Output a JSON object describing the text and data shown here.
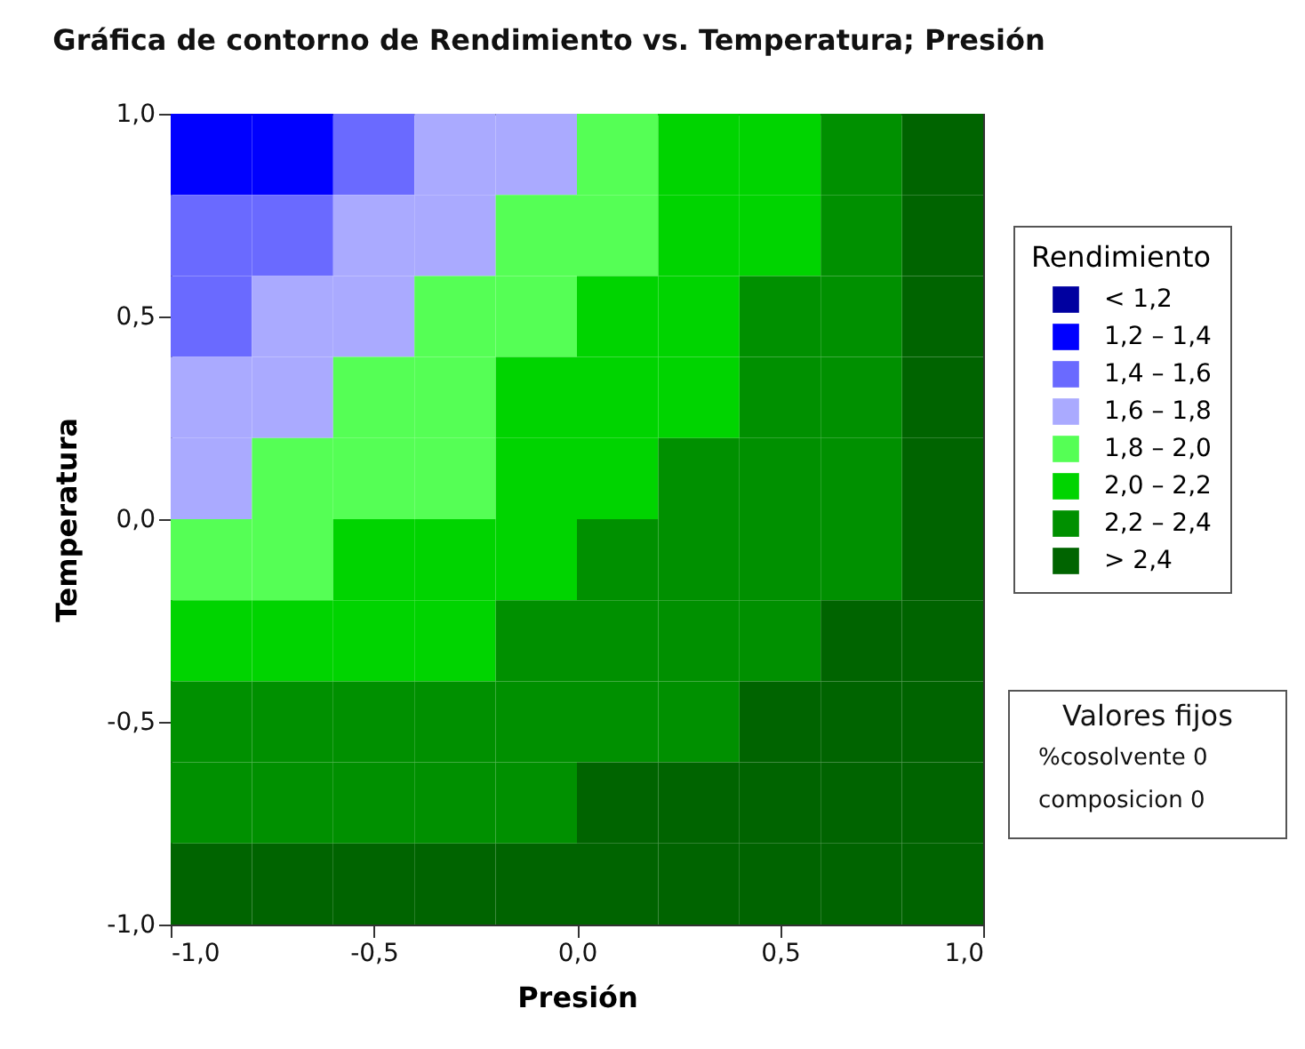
{
  "chart_data": {
    "type": "heatmap",
    "title": "Gráfica de contorno de Rendimiento vs. Temperatura; Presión",
    "xlabel": "Presión",
    "ylabel": "Temperatura",
    "legend_title": "Rendimiento",
    "x": [
      -0.9,
      -0.7,
      -0.5,
      -0.3,
      -0.1,
      0.1,
      0.3,
      0.5,
      0.7,
      0.9
    ],
    "y": [
      0.9,
      0.7,
      0.5,
      0.3,
      0.1,
      -0.1,
      -0.3,
      -0.5,
      -0.7,
      -0.9
    ],
    "xlim": [
      -1,
      1
    ],
    "ylim": [
      -1,
      1
    ],
    "xticks": [
      {
        "value": -1,
        "label": "-1,0"
      },
      {
        "value": -0.5,
        "label": "-0,5"
      },
      {
        "value": 0,
        "label": "0,0"
      },
      {
        "value": 0.5,
        "label": "0,5"
      },
      {
        "value": 1,
        "label": "1,0"
      }
    ],
    "yticks": [
      {
        "value": -1,
        "label": "-1,0"
      },
      {
        "value": -0.5,
        "label": "-0,5"
      },
      {
        "value": 0,
        "label": "0,0"
      },
      {
        "value": 0.5,
        "label": "0,5"
      },
      {
        "value": 1,
        "label": "1,0"
      }
    ],
    "cticks": [
      {
        "value": 1.1,
        "label": "< 1,2"
      },
      {
        "value": 1.3,
        "label": "1,2 – 1,4"
      },
      {
        "value": 1.5,
        "label": "1,4 – 1,6"
      },
      {
        "value": 1.7,
        "label": "1,6 – 1,8"
      },
      {
        "value": 1.9,
        "label": "1,8 – 2,0"
      },
      {
        "value": 2.1,
        "label": "2,0 – 2,2"
      },
      {
        "value": 2.3,
        "label": "2,2 – 2,4"
      },
      {
        "value": 2.5,
        "label": "> 2,4"
      }
    ],
    "colors": [
      "#0000a0",
      "#0000ff",
      "#6a6aff",
      "#aaaaff",
      "#55ff55",
      "#00d400",
      "#009000",
      "#006400"
    ],
    "cells": [
      [
        1.3,
        1.3,
        1.5,
        1.7,
        1.7,
        1.9,
        2.1,
        2.1,
        2.3,
        2.5
      ],
      [
        1.5,
        1.5,
        1.7,
        1.7,
        1.9,
        1.9,
        2.1,
        2.1,
        2.3,
        2.5
      ],
      [
        1.5,
        1.7,
        1.7,
        1.9,
        1.9,
        2.1,
        2.1,
        2.3,
        2.3,
        2.5
      ],
      [
        1.7,
        1.7,
        1.9,
        1.9,
        2.1,
        2.1,
        2.1,
        2.3,
        2.3,
        2.5
      ],
      [
        1.7,
        1.9,
        1.9,
        1.9,
        2.1,
        2.1,
        2.3,
        2.3,
        2.3,
        2.5
      ],
      [
        1.9,
        1.9,
        2.1,
        2.1,
        2.1,
        2.3,
        2.3,
        2.3,
        2.3,
        2.5
      ],
      [
        2.1,
        2.1,
        2.1,
        2.1,
        2.3,
        2.3,
        2.3,
        2.3,
        2.5,
        2.5
      ],
      [
        2.3,
        2.3,
        2.3,
        2.3,
        2.3,
        2.3,
        2.3,
        2.5,
        2.5,
        2.5
      ],
      [
        2.3,
        2.3,
        2.3,
        2.3,
        2.3,
        2.5,
        2.5,
        2.5,
        2.5,
        2.5
      ],
      [
        2.5,
        2.5,
        2.5,
        2.5,
        2.5,
        2.5,
        2.5,
        2.5,
        2.5,
        2.5
      ]
    ],
    "annotations": [
      "Valores fijos",
      "%cosolvente 0",
      "composicion 0"
    ]
  }
}
